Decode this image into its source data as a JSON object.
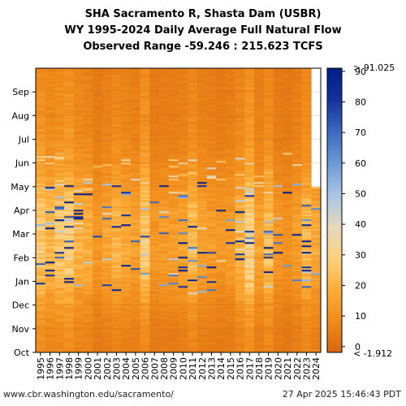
{
  "chart_data": {
    "type": "heatmap",
    "title": "SHA Sacramento R, Shasta Dam (USBR)",
    "subtitle": "WY 1995-2024 Daily Average Full Natural Flow",
    "range_text": "Observed Range -59.246 : 215.623 TCFS",
    "x_categories": [
      "1995",
      "1996",
      "1997",
      "1998",
      "1999",
      "2000",
      "2001",
      "2002",
      "2003",
      "2004",
      "2005",
      "2006",
      "2007",
      "2008",
      "2009",
      "2010",
      "2011",
      "2012",
      "2013",
      "2014",
      "2015",
      "2016",
      "2017",
      "2018",
      "2019",
      "2020",
      "2021",
      "2022",
      "2023",
      "2024"
    ],
    "y_labels": [
      "Oct",
      "Nov",
      "Dec",
      "Jan",
      "Feb",
      "Mar",
      "Apr",
      "May",
      "Jun",
      "Jul",
      "Aug",
      "Sep"
    ],
    "colorbar": {
      "min": -1.912,
      "max": 91.025,
      "ticks": [
        0,
        10,
        20,
        30,
        40,
        50,
        60,
        70,
        80,
        90
      ],
      "min_label": "< -1.912",
      "max_label": "> 91.025",
      "colors": [
        "#d8650e",
        "#f08c1c",
        "#fcae3a",
        "#fdd27e",
        "#e3d8c0",
        "#a9c4e6",
        "#6a9ad4",
        "#3a69bf",
        "#14329e",
        "#001e8a"
      ]
    },
    "grid": "dotted, on month boundaries",
    "description_of_values": "Daily flow in TCFS per water year column; high flows (Jan-Mar storms) appear blue, summer baseflow orange-yellow"
  },
  "footer": {
    "left": "www.cbr.washington.edu/sacramento/",
    "right": "27 Apr 2025 15:46:43 PDT"
  }
}
